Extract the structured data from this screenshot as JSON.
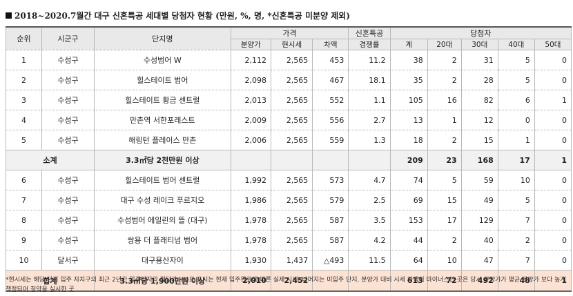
{
  "title": "2018~2020.7월간 대구 신혼특공 세대별 당첨자 현황 (만원, %, 명, *신혼특공 미분양 제외)",
  "headers": {
    "rank": "순위",
    "district": "시군구",
    "complex": "단지명",
    "price_group": "가격",
    "newlywed_group": "신혼특공",
    "winners_group": "당첨자",
    "sale_price": "분양가",
    "market_price": "현시세",
    "difference": "차액",
    "competition": "경쟁률",
    "total": "계",
    "age20": "20대",
    "age30": "30대",
    "age40": "40대",
    "age50": "50대"
  },
  "rows": [
    {
      "rank": "1",
      "district": "수성구",
      "complex": "수성범어 W",
      "sale": "2,112",
      "market": "2,565",
      "diff": "453",
      "comp": "11.2",
      "total": "38",
      "a20": "2",
      "a30": "31",
      "a40": "5",
      "a50": "0"
    },
    {
      "rank": "2",
      "district": "수성구",
      "complex": "힐스테이트 범어",
      "sale": "2,098",
      "market": "2,565",
      "diff": "467",
      "comp": "18.1",
      "total": "35",
      "a20": "2",
      "a30": "28",
      "a40": "5",
      "a50": "0"
    },
    {
      "rank": "3",
      "district": "수성구",
      "complex": "힐스테이트 황금 센트럴",
      "sale": "2,013",
      "market": "2,565",
      "diff": "552",
      "comp": "1.1",
      "total": "105",
      "a20": "16",
      "a30": "82",
      "a40": "6",
      "a50": "1"
    },
    {
      "rank": "4",
      "district": "수성구",
      "complex": "만촌역 서한포레스트",
      "sale": "2,009",
      "market": "2,565",
      "diff": "556",
      "comp": "2.7",
      "total": "13",
      "a20": "1",
      "a30": "12",
      "a40": "0",
      "a50": "0"
    },
    {
      "rank": "5",
      "district": "수성구",
      "complex": "해링턴 플레이스 만촌",
      "sale": "2,006",
      "market": "2,565",
      "diff": "559",
      "comp": "1.3",
      "total": "18",
      "a20": "2",
      "a30": "15",
      "a40": "1",
      "a50": "0"
    }
  ],
  "subtotal": {
    "label": "소계",
    "desc": "3.3㎡당 2천만원 이상",
    "total": "209",
    "a20": "23",
    "a30": "168",
    "a40": "17",
    "a50": "1"
  },
  "rows2": [
    {
      "rank": "6",
      "district": "수성구",
      "complex": "힐스테이트 범어 센트럴",
      "sale": "1,992",
      "market": "2,565",
      "diff": "573",
      "comp": "4.7",
      "total": "74",
      "a20": "5",
      "a30": "59",
      "a40": "10",
      "a50": "0"
    },
    {
      "rank": "7",
      "district": "수성구",
      "complex": "대구 수성 레이크 푸르지오",
      "sale": "1,986",
      "market": "2,565",
      "diff": "579",
      "comp": "2.5",
      "total": "69",
      "a20": "15",
      "a30": "49",
      "a40": "5",
      "a50": "0"
    },
    {
      "rank": "8",
      "district": "수성구",
      "complex": "수성범어 에일린의 뜰 (대구)",
      "sale": "1,978",
      "market": "2,565",
      "diff": "587",
      "comp": "3.5",
      "total": "153",
      "a20": "17",
      "a30": "129",
      "a40": "7",
      "a50": "0"
    },
    {
      "rank": "9",
      "district": "수성구",
      "complex": "쌍용 더 플래티넘 범어",
      "sale": "1,978",
      "market": "2,565",
      "diff": "587",
      "comp": "4.2",
      "total": "44",
      "a20": "2",
      "a30": "40",
      "a40": "2",
      "a50": "0"
    },
    {
      "rank": "10",
      "district": "달서구",
      "complex": "대구용산자이",
      "sale": "1,930",
      "market": "1,437",
      "diff": "△493",
      "comp": "11.5",
      "total": "64",
      "a20": "10",
      "a30": "47",
      "a40": "7",
      "a50": "0"
    }
  ],
  "grand_total": {
    "label": "합계",
    "desc": "3.3㎡당 1,900만원 이상",
    "sale": "2,010",
    "market": "2,452",
    "total": "613",
    "a20": "72",
    "a30": "492",
    "a40": "48",
    "a50": "1"
  },
  "note": "*현시세는 해당 단지 입주 자치구의 최근 2년간 입주단지의 평당가, (*)표 표시는 현재 입주완료에 따른 실제 시세, 나머지는 미입주 단지. 분양가 대비 시세 차액이 마이너스인 곳은 당시 분양가가 평균 분양가 보다 높게 책정되어 청약을 실시한 곳"
}
